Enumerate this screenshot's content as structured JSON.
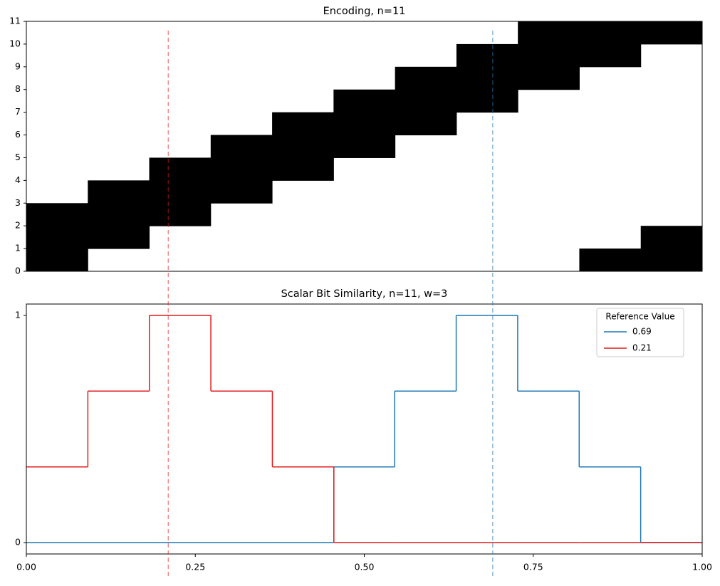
{
  "chart_data": [
    {
      "type": "heatmap",
      "title": "Encoding, n=11",
      "active_bits": [
        [
          0,
          1,
          2
        ],
        [
          1,
          2,
          3
        ],
        [
          2,
          3,
          4
        ],
        [
          3,
          4,
          5
        ],
        [
          4,
          5,
          6
        ],
        [
          5,
          6,
          7
        ],
        [
          6,
          7,
          8
        ],
        [
          7,
          8,
          9
        ],
        [
          8,
          9,
          10
        ],
        [
          0,
          9,
          10
        ],
        [
          0,
          1,
          10
        ]
      ],
      "color": "#000000",
      "xlim": [
        0,
        1
      ],
      "ylim": [
        0,
        11
      ],
      "yticks": [
        0,
        1,
        2,
        3,
        4,
        5,
        6,
        7,
        8,
        9,
        10,
        11
      ]
    },
    {
      "type": "step",
      "title": "Scalar Bit Similarity, n=11, w=3",
      "x": [
        0,
        0.091,
        0.182,
        0.273,
        0.364,
        0.455,
        0.545,
        0.636,
        0.727,
        0.818,
        0.909
      ],
      "series": [
        {
          "name": "0.69",
          "reference": 0.69,
          "color": "#1f77b4",
          "values": [
            0,
            0,
            0,
            0,
            0,
            0.333,
            0.667,
            1,
            0.667,
            0.333,
            0
          ]
        },
        {
          "name": "0.21",
          "reference": 0.21,
          "color": "#e31a1c",
          "values": [
            0.333,
            0.667,
            1,
            0.667,
            0.333,
            0,
            0,
            0,
            0,
            0,
            0
          ]
        }
      ],
      "legend_title": "Reference Value",
      "legend": "upper right",
      "xlim": [
        0,
        1
      ],
      "ylim": [
        -0.05,
        1.05
      ],
      "xticks": [
        {
          "value": 0,
          "label": "0.00"
        },
        {
          "value": 0.25,
          "label": "0.25"
        },
        {
          "value": 0.5,
          "label": "0.50"
        },
        {
          "value": 0.75,
          "label": "0.75"
        },
        {
          "value": 1,
          "label": "1.00"
        }
      ],
      "yticks": [
        0,
        1
      ]
    }
  ]
}
